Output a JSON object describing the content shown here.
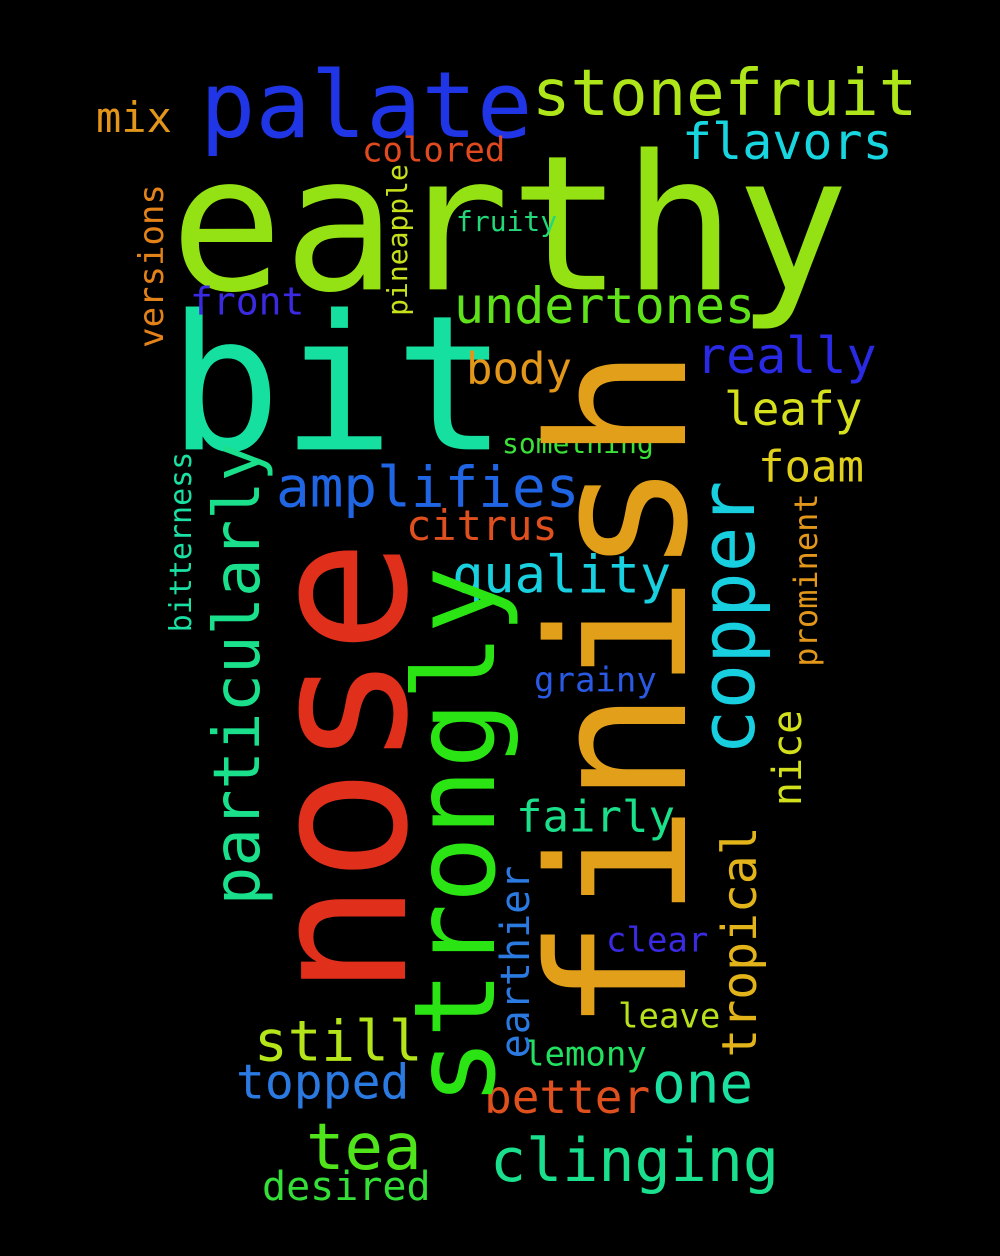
{
  "words": [
    {
      "id": "earthy",
      "text": "earthy",
      "color": "#94e214"
    },
    {
      "id": "bit",
      "text": "bit",
      "color": "#15e0a0"
    },
    {
      "id": "nose",
      "text": "nose",
      "color": "#e0301c"
    },
    {
      "id": "finish",
      "text": "finish",
      "color": "#e2a01a"
    },
    {
      "id": "strongly",
      "text": "strongly",
      "color": "#2ae414"
    },
    {
      "id": "palate",
      "text": "palate",
      "color": "#2036e6"
    },
    {
      "id": "stonefruit",
      "text": "stonefruit",
      "color": "#aee61a"
    },
    {
      "id": "flavors",
      "text": "flavors",
      "color": "#18d6e0"
    },
    {
      "id": "mix",
      "text": "mix",
      "color": "#e2961a"
    },
    {
      "id": "colored",
      "text": "colored",
      "color": "#e04a1e"
    },
    {
      "id": "fruity",
      "text": "fruity",
      "color": "#22d878"
    },
    {
      "id": "pineapple",
      "text": "pineapple",
      "color": "#c6e01c"
    },
    {
      "id": "versions",
      "text": "versions",
      "color": "#e4821a"
    },
    {
      "id": "front",
      "text": "front",
      "color": "#3a2ae2"
    },
    {
      "id": "undertones",
      "text": "undertones",
      "color": "#60e21a"
    },
    {
      "id": "really",
      "text": "really",
      "color": "#2a2ae4"
    },
    {
      "id": "body",
      "text": "body",
      "color": "#e2961a"
    },
    {
      "id": "leafy",
      "text": "leafy",
      "color": "#d6e01c"
    },
    {
      "id": "something",
      "text": "something",
      "color": "#3ae238"
    },
    {
      "id": "particularly",
      "text": "particularly",
      "color": "#1ae08c"
    },
    {
      "id": "amplifies",
      "text": "amplifies",
      "color": "#2066e4"
    },
    {
      "id": "copper",
      "text": "copper",
      "color": "#18cfe0"
    },
    {
      "id": "foam",
      "text": "foam",
      "color": "#e0d01c"
    },
    {
      "id": "bitterness",
      "text": "bitterness",
      "color": "#1ae0a4"
    },
    {
      "id": "citrus",
      "text": "citrus",
      "color": "#e0501e"
    },
    {
      "id": "prominent",
      "text": "prominent",
      "color": "#e2961a"
    },
    {
      "id": "quality",
      "text": "quality",
      "color": "#18d0e0"
    },
    {
      "id": "grainy",
      "text": "grainy",
      "color": "#2a5ae4"
    },
    {
      "id": "nice",
      "text": "nice",
      "color": "#d2e01c"
    },
    {
      "id": "fairly",
      "text": "fairly",
      "color": "#1ae08a"
    },
    {
      "id": "tropical",
      "text": "tropical",
      "color": "#e2b41a"
    },
    {
      "id": "earthier",
      "text": "earthier",
      "color": "#2a7ae2"
    },
    {
      "id": "clear",
      "text": "clear",
      "color": "#3a2ae2"
    },
    {
      "id": "leave",
      "text": "leave",
      "color": "#b8e01c"
    },
    {
      "id": "still",
      "text": "still",
      "color": "#b4e41a"
    },
    {
      "id": "lemony",
      "text": "lemony",
      "color": "#22e060"
    },
    {
      "id": "topped",
      "text": "topped",
      "color": "#2a7ae2"
    },
    {
      "id": "one",
      "text": "one",
      "color": "#1ae0a0"
    },
    {
      "id": "better",
      "text": "better",
      "color": "#e0501e"
    },
    {
      "id": "tea",
      "text": "tea",
      "color": "#50e41a"
    },
    {
      "id": "clinging",
      "text": "clinging",
      "color": "#1ae08e"
    },
    {
      "id": "desired",
      "text": "desired",
      "color": "#34e038"
    }
  ]
}
